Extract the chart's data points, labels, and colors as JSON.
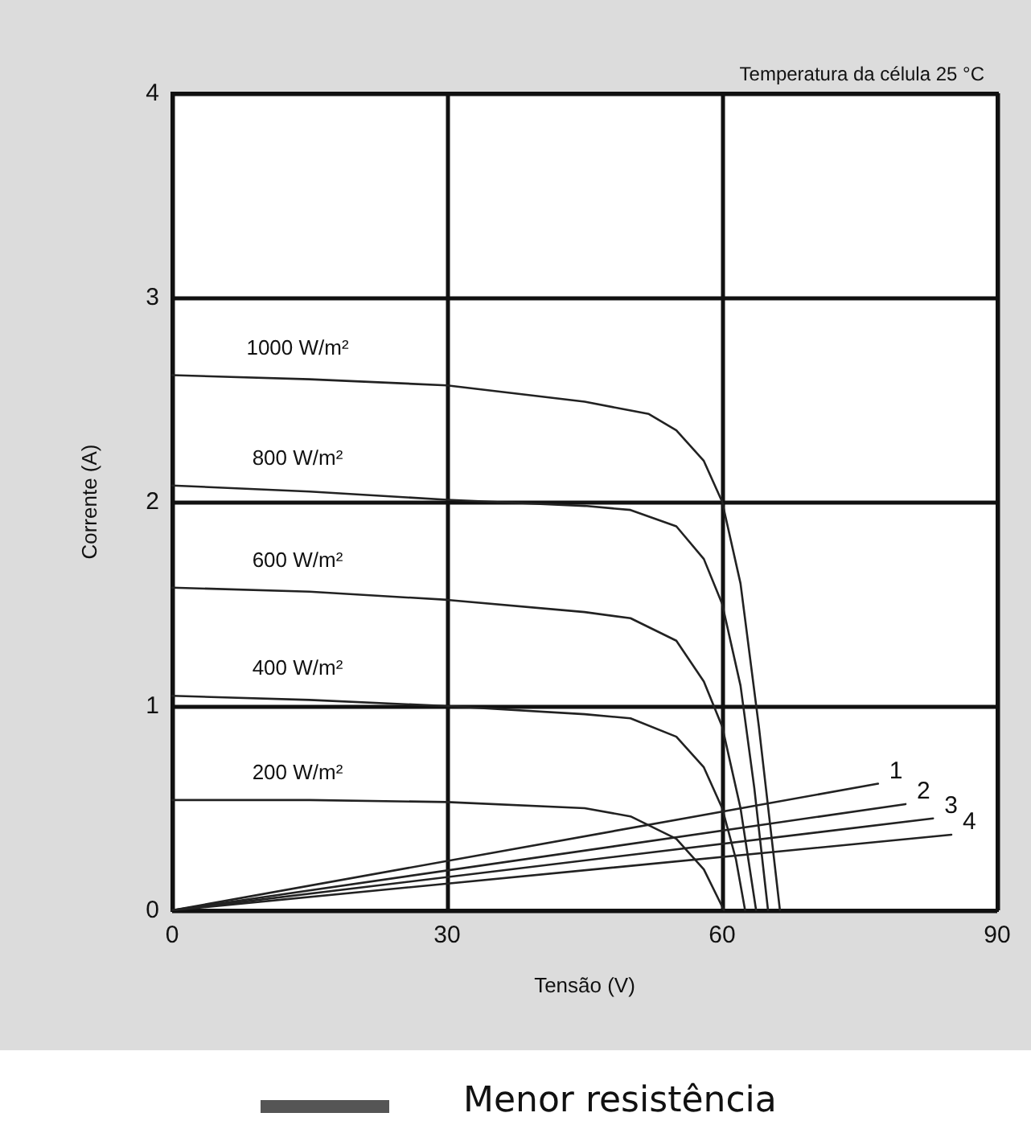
{
  "chart_data": {
    "type": "line",
    "title": "Temperatura da célula 25 °C",
    "xlabel": "Tensão (V)",
    "ylabel": "Corrente (A)",
    "xlim": [
      0,
      90
    ],
    "xticks": [
      0,
      30,
      60,
      90
    ],
    "ylim": [
      0,
      4
    ],
    "yticks": [
      0,
      1,
      2,
      3,
      4
    ],
    "grid": true,
    "legend": false,
    "marker": "none",
    "line_style": "solid",
    "annotations": [
      "Menor resistência"
    ],
    "series": [
      {
        "name": "1000 W/m²",
        "color": "#222222",
        "x": [
          0,
          15,
          30,
          45,
          52,
          55,
          58,
          60,
          62,
          64,
          66.3
        ],
        "values": [
          2.62,
          2.6,
          2.57,
          2.49,
          2.43,
          2.35,
          2.2,
          2.0,
          1.6,
          0.9,
          0
        ]
      },
      {
        "name": "800 W/m²",
        "color": "#222222",
        "x": [
          0,
          15,
          30,
          45,
          50,
          55,
          58,
          60,
          62,
          63.5,
          65
        ],
        "values": [
          2.08,
          2.05,
          2.01,
          1.98,
          1.96,
          1.88,
          1.72,
          1.5,
          1.1,
          0.6,
          0
        ]
      },
      {
        "name": "600 W/m²",
        "color": "#222222",
        "x": [
          0,
          15,
          30,
          45,
          50,
          55,
          58,
          60,
          62,
          63.7
        ],
        "values": [
          1.58,
          1.56,
          1.52,
          1.46,
          1.43,
          1.32,
          1.12,
          0.9,
          0.5,
          0
        ]
      },
      {
        "name": "400 W/m²",
        "color": "#222222",
        "x": [
          0,
          15,
          30,
          45,
          50,
          55,
          58,
          60,
          61.5,
          62.5
        ],
        "values": [
          1.05,
          1.03,
          1.0,
          0.96,
          0.94,
          0.85,
          0.7,
          0.5,
          0.25,
          0
        ]
      },
      {
        "name": "200 W/m²",
        "color": "#222222",
        "x": [
          0,
          15,
          30,
          45,
          50,
          55,
          58,
          60.2
        ],
        "values": [
          0.54,
          0.54,
          0.53,
          0.5,
          0.46,
          0.35,
          0.2,
          0
        ]
      },
      {
        "name": "1",
        "color": "#222222",
        "x": [
          0,
          77
        ],
        "values": [
          0,
          0.62
        ]
      },
      {
        "name": "2",
        "color": "#222222",
        "x": [
          0,
          80
        ],
        "values": [
          0,
          0.52
        ]
      },
      {
        "name": "3",
        "color": "#222222",
        "x": [
          0,
          83
        ],
        "values": [
          0,
          0.45
        ]
      },
      {
        "name": "4",
        "color": "#222222",
        "x": [
          0,
          85
        ],
        "values": [
          0,
          0.37
        ]
      }
    ]
  }
}
